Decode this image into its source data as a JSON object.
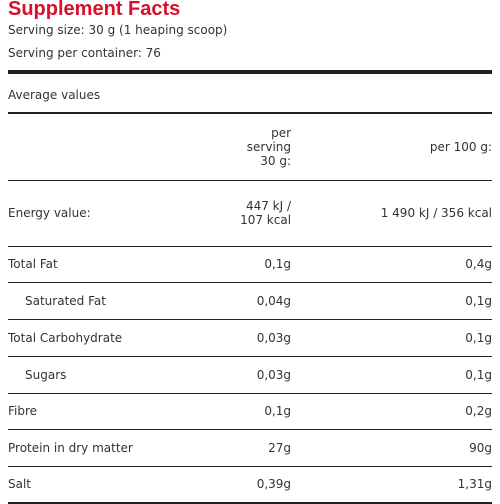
{
  "header": {
    "title": "Supplement Facts",
    "title_color": "#d8102a",
    "serving_size": "Serving size: 30 g (1 heaping scoop)",
    "servings_per_container": "Serving per container: 76"
  },
  "section_label": "Average values",
  "columns": {
    "per_serving": "per serving 30 g:",
    "per_100g": "per 100 g:"
  },
  "rows": [
    {
      "nutrient": "Energy value:",
      "per_serving": "447 kJ / 107 kcal",
      "per_100g": "1 490 kJ / 356 kcal"
    },
    {
      "nutrient": "Total Fat",
      "per_serving": "0,1g",
      "per_100g": "0,4g"
    },
    {
      "nutrient": "Saturated Fat",
      "per_serving": "0,04g",
      "per_100g": "0,1g"
    },
    {
      "nutrient": "Total Carbohydrate",
      "per_serving": "0,03g",
      "per_100g": "0,1g"
    },
    {
      "nutrient": "Sugars",
      "per_serving": "0,03g",
      "per_100g": "0,1g"
    },
    {
      "nutrient": "Fibre",
      "per_serving": "0,1g",
      "per_100g": "0,2g"
    },
    {
      "nutrient": "Protein in dry matter",
      "per_serving": "27g",
      "per_100g": "90g"
    },
    {
      "nutrient": "Salt",
      "per_serving": "0,39g",
      "per_100g": "1,31g"
    }
  ]
}
